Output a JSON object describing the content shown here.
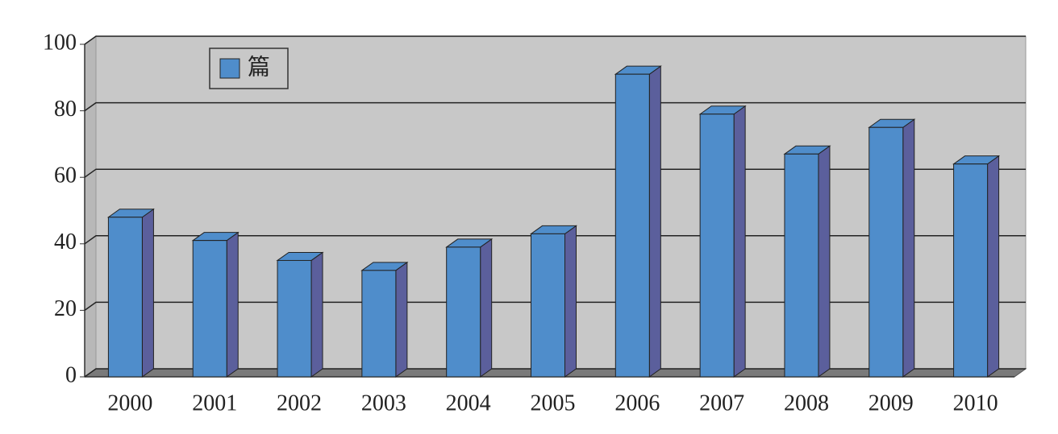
{
  "chart_data": {
    "type": "bar3d",
    "categories": [
      "2000",
      "2001",
      "2002",
      "2003",
      "2004",
      "2005",
      "2006",
      "2007",
      "2008",
      "2009",
      "2010"
    ],
    "series": [
      {
        "name": "篇",
        "color": "#4f8dcb",
        "values": [
          48,
          41,
          35,
          32,
          39,
          43,
          91,
          79,
          67,
          75,
          64
        ]
      }
    ],
    "ylim": [
      0,
      100
    ],
    "yticks": [
      0,
      20,
      40,
      60,
      80,
      100
    ],
    "grid": true,
    "legend": "upper left"
  }
}
